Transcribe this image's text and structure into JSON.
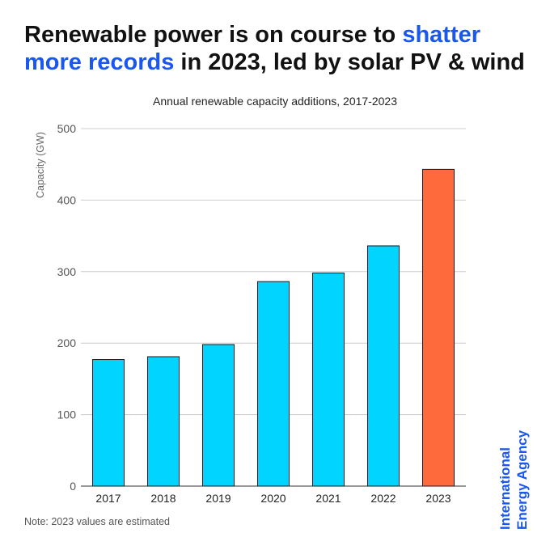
{
  "headline": {
    "part1": "Renewable power is on course to ",
    "highlight": "shatter more records",
    "part2": " in 2023, led by solar PV & wind"
  },
  "colors": {
    "highlight": "#1a56f0",
    "bar_actual": "#00d4ff",
    "bar_estimated": "#ff6a3d",
    "grid": "#cccccc"
  },
  "chart_data": {
    "type": "bar",
    "title": "Annual renewable capacity additions, 2017-2023",
    "xlabel": "",
    "ylabel": "Capacity (GW)",
    "categories": [
      "2017",
      "2018",
      "2019",
      "2020",
      "2021",
      "2022",
      "2023"
    ],
    "values": [
      177,
      181,
      198,
      286,
      298,
      336,
      443
    ],
    "estimated": [
      false,
      false,
      false,
      false,
      false,
      false,
      true
    ],
    "ylim": [
      0,
      500
    ],
    "yticks": [
      0,
      100,
      200,
      300,
      400,
      500
    ],
    "grid": true,
    "legend": false
  },
  "note": "Note: 2023 values are estimated",
  "brand": {
    "line1": "International",
    "line2": "Energy Agency"
  }
}
